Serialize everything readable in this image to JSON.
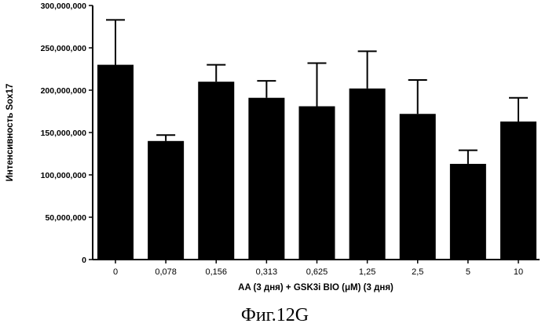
{
  "chart_data": {
    "type": "bar",
    "categories": [
      "0",
      "0,078",
      "0,156",
      "0,313",
      "0,625",
      "1,25",
      "2,5",
      "5",
      "10"
    ],
    "values": [
      230000000,
      140000000,
      210000000,
      191000000,
      181000000,
      202000000,
      172000000,
      113000000,
      163000000
    ],
    "error_upper": [
      283000000,
      147000000,
      230000000,
      211000000,
      232000000,
      246000000,
      212000000,
      129000000,
      191000000
    ],
    "ylim": [
      0,
      300000000
    ],
    "yticks": [
      0,
      50000000,
      100000000,
      150000000,
      200000000,
      250000000,
      300000000
    ],
    "ytick_labels": [
      "0",
      "50,000,000",
      "100,000,000",
      "150,000,000",
      "200,000,000",
      "250,000,000",
      "300,000,000"
    ],
    "xlabel": "AA (3 дня) + GSK3i BIO (μM) (3 дня)",
    "ylabel": "Интенсивность Sox17",
    "bar_color": "#000000",
    "grid": false
  },
  "caption": "Фиг.12G"
}
